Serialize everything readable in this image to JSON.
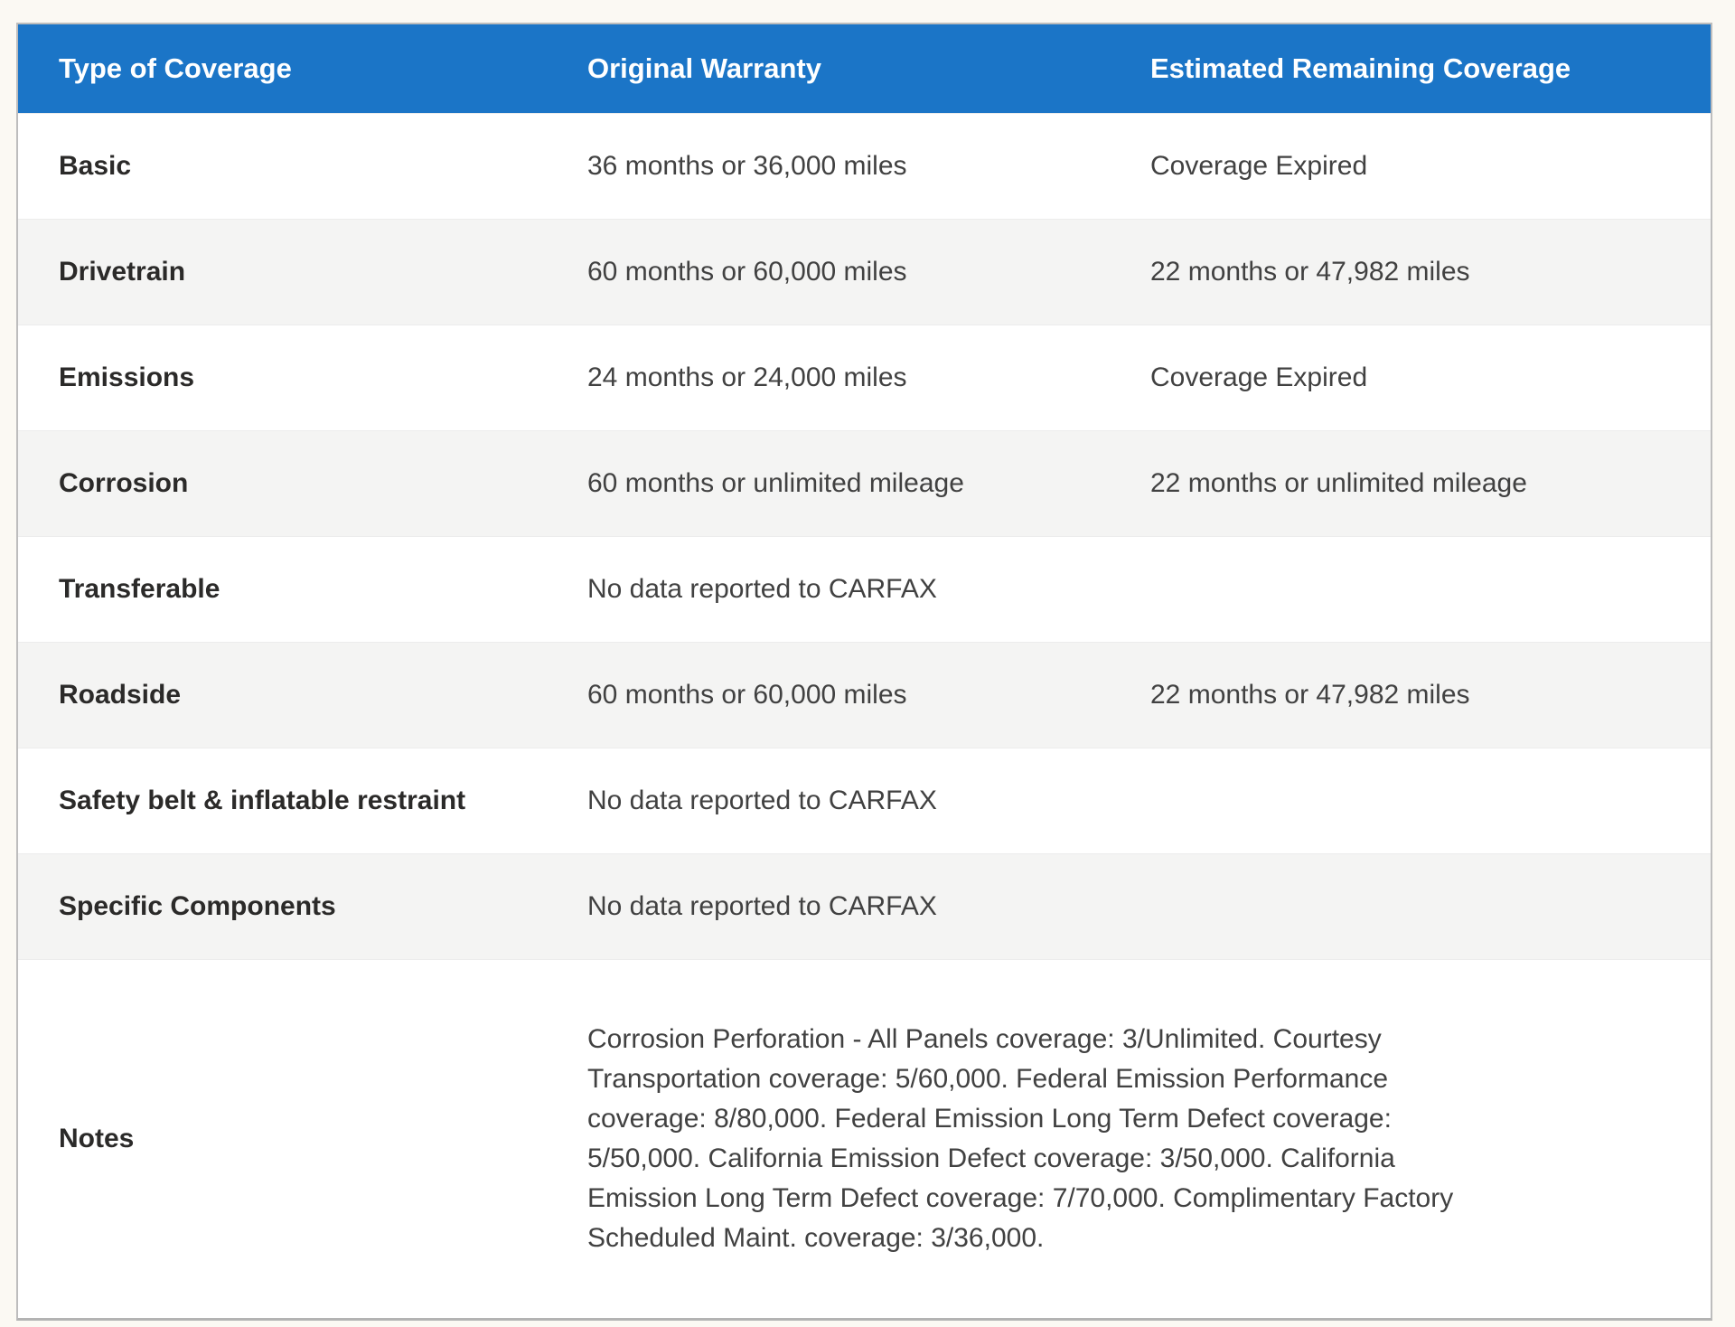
{
  "table": {
    "headers": {
      "type": "Type of Coverage",
      "original": "Original Warranty",
      "remaining": "Estimated Remaining Coverage"
    },
    "rows": [
      {
        "type": "Basic",
        "original": "36 months or 36,000 miles",
        "remaining": "Coverage Expired"
      },
      {
        "type": "Drivetrain",
        "original": "60 months or 60,000 miles",
        "remaining": "22 months or 47,982 miles"
      },
      {
        "type": "Emissions",
        "original": "24 months or 24,000 miles",
        "remaining": "Coverage Expired"
      },
      {
        "type": "Corrosion",
        "original": "60 months or unlimited mileage",
        "remaining": "22 months or unlimited mileage"
      },
      {
        "type": "Transferable",
        "original": "No data reported to CARFAX",
        "remaining": ""
      },
      {
        "type": "Roadside",
        "original": "60 months or 60,000 miles",
        "remaining": "22 months or 47,982 miles"
      },
      {
        "type": "Safety belt & inflatable restraint",
        "original": "No data reported to CARFAX",
        "remaining": ""
      },
      {
        "type": "Specific Components",
        "original": "No data reported to CARFAX",
        "remaining": ""
      }
    ],
    "notes": {
      "label": "Notes",
      "lines": [
        "Corrosion Perforation - All Panels coverage: 3/Unlimited. Courtesy",
        "Transportation coverage: 5/60,000. Federal Emission Performance",
        "coverage: 8/80,000. Federal Emission Long Term Defect coverage:",
        "5/50,000. California Emission Defect coverage: 3/50,000. California",
        "Emission Long Term Defect coverage: 7/70,000. Complimentary Factory",
        "Scheduled Maint. coverage: 3/36,000."
      ]
    },
    "colors": {
      "header_bg": "#1b75c7",
      "header_text": "#ffffff",
      "alt_row_bg": "#f4f4f3",
      "label_text": "#2b2a29",
      "value_text": "#414141"
    }
  }
}
